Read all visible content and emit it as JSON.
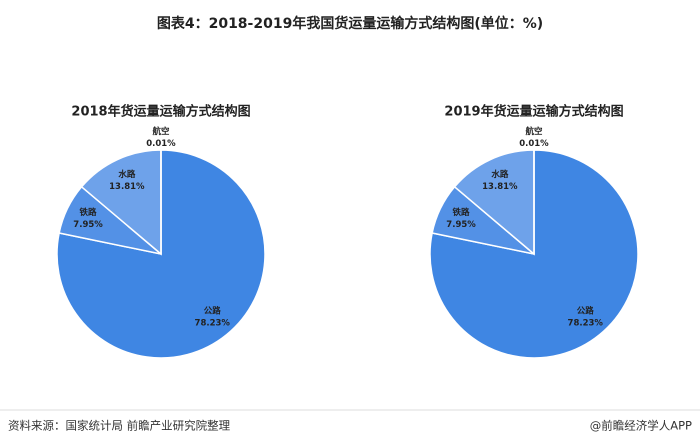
{
  "title": "图表4：2018-2019年我国货运量运输方式结构图(单位：%)",
  "source": "资料来源：国家统计局 前瞻产业研究院整理",
  "credit": "@前瞻经济学人APP",
  "chart_data": [
    {
      "type": "pie",
      "title": "2018年货运量运输方式结构图",
      "categories": [
        "公路",
        "铁路",
        "水路",
        "航空"
      ],
      "values": [
        78.23,
        7.95,
        13.81,
        0.01
      ],
      "value_labels": [
        "78.23%",
        "7.95%",
        "13.81%",
        "0.01%"
      ],
      "colors": [
        "#3f86e3",
        "#5391e6",
        "#6ea2ea",
        "#8fb8ef"
      ]
    },
    {
      "type": "pie",
      "title": "2019年货运量运输方式结构图",
      "categories": [
        "公路",
        "铁路",
        "水路",
        "航空"
      ],
      "values": [
        78.23,
        7.95,
        13.81,
        0.01
      ],
      "value_labels": [
        "78.23%",
        "7.95%",
        "13.81%",
        "0.01%"
      ],
      "colors": [
        "#3f86e3",
        "#5391e6",
        "#6ea2ea",
        "#8fb8ef"
      ]
    }
  ]
}
